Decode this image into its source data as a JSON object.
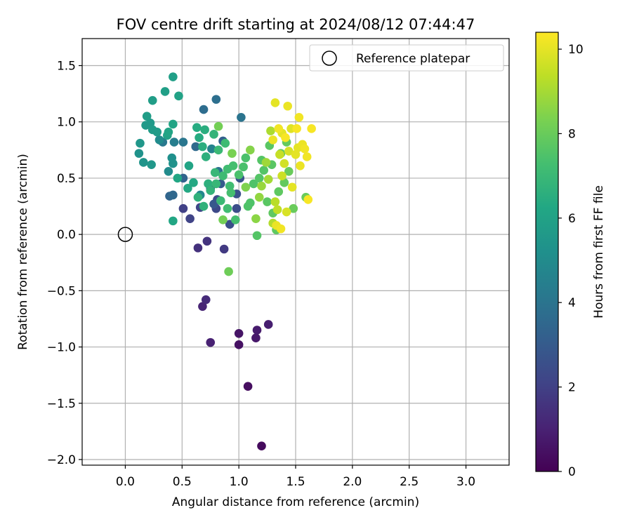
{
  "chart_data": {
    "type": "scatter",
    "title": "FOV centre drift starting at 2024/08/12 07:44:47",
    "xlabel": "Angular distance from reference (arcmin)",
    "ylabel": "Rotation from reference (arcmin)",
    "xlim": [
      -0.38,
      3.38
    ],
    "ylim": [
      -2.05,
      1.74
    ],
    "xticks": [
      0.0,
      0.5,
      1.0,
      1.5,
      2.0,
      2.5,
      3.0
    ],
    "xtick_labels": [
      "0.0",
      "0.5",
      "1.0",
      "1.5",
      "2.0",
      "2.5",
      "3.0"
    ],
    "yticks": [
      -2.0,
      -1.5,
      -1.0,
      -0.5,
      0.0,
      0.5,
      1.0,
      1.5
    ],
    "ytick_labels": [
      "−2.0",
      "−1.5",
      "−1.0",
      "−0.5",
      "0.0",
      "0.5",
      "1.0",
      "1.5"
    ],
    "grid": true,
    "legend": {
      "placement": "top-right",
      "entries": [
        "Reference platepar"
      ]
    },
    "reference_point": {
      "x": 0.0,
      "y": 0.0,
      "marker": "open-circle"
    },
    "colorbar": {
      "label": "Hours from first FF file",
      "min": 0,
      "max": 10.4,
      "ticks": [
        0,
        2,
        4,
        6,
        8,
        10
      ],
      "tick_labels": [
        "0",
        "2",
        "4",
        "6",
        "8",
        "10"
      ],
      "colormap": "viridis"
    },
    "series": [
      {
        "points": [
          [
            1.2,
            -1.88,
            0.3
          ],
          [
            1.08,
            -1.35,
            0.4
          ],
          [
            1.0,
            -0.98,
            0.5
          ],
          [
            1.0,
            -0.88,
            0.6
          ],
          [
            1.15,
            -0.92,
            0.7
          ],
          [
            1.16,
            -0.85,
            0.8
          ],
          [
            1.26,
            -0.8,
            0.9
          ],
          [
            0.75,
            -0.96,
            1.0
          ],
          [
            0.68,
            -0.64,
            1.1
          ],
          [
            0.71,
            -0.58,
            1.3
          ],
          [
            0.64,
            -0.12,
            1.5
          ],
          [
            0.72,
            -0.06,
            1.6
          ],
          [
            0.87,
            -0.13,
            1.8
          ],
          [
            0.51,
            0.23,
            2.0
          ],
          [
            0.57,
            0.14,
            2.1
          ],
          [
            0.66,
            0.24,
            2.2
          ],
          [
            0.8,
            0.23,
            2.3
          ],
          [
            0.81,
            0.31,
            2.4
          ],
          [
            0.92,
            0.09,
            2.5
          ],
          [
            0.98,
            0.23,
            2.5
          ],
          [
            0.98,
            0.36,
            2.6
          ],
          [
            1.01,
            0.5,
            2.7
          ],
          [
            0.75,
            0.41,
            2.8
          ],
          [
            0.78,
            0.27,
            2.9
          ],
          [
            0.84,
            0.45,
            3.0
          ],
          [
            0.86,
            0.83,
            3.2
          ],
          [
            0.51,
            0.5,
            3.3
          ],
          [
            0.39,
            0.34,
            3.4
          ],
          [
            0.42,
            0.35,
            3.5
          ],
          [
            0.62,
            0.78,
            3.6
          ],
          [
            0.69,
            1.11,
            3.7
          ],
          [
            0.8,
            1.2,
            3.8
          ],
          [
            0.82,
            0.56,
            3.9
          ],
          [
            1.02,
            1.04,
            4.0
          ],
          [
            0.51,
            0.82,
            4.1
          ],
          [
            0.33,
            0.82,
            4.2
          ],
          [
            0.43,
            0.82,
            4.4
          ],
          [
            0.76,
            0.76,
            4.6
          ],
          [
            0.66,
            0.35,
            4.8
          ],
          [
            0.3,
            0.84,
            5.0
          ],
          [
            0.38,
            0.56,
            5.0
          ],
          [
            0.41,
            0.68,
            5.2
          ],
          [
            0.42,
            0.63,
            5.3
          ],
          [
            0.12,
            0.72,
            5.3
          ],
          [
            0.16,
            0.64,
            5.4
          ],
          [
            0.23,
            0.62,
            5.5
          ],
          [
            0.13,
            0.81,
            5.5
          ],
          [
            0.18,
            0.97,
            5.6
          ],
          [
            0.22,
            0.99,
            5.6
          ],
          [
            0.24,
            0.93,
            5.7
          ],
          [
            0.28,
            0.91,
            5.7
          ],
          [
            0.19,
            1.05,
            5.8
          ],
          [
            0.24,
            1.19,
            5.8
          ],
          [
            0.35,
            1.27,
            5.9
          ],
          [
            0.42,
            1.4,
            5.9
          ],
          [
            0.47,
            1.23,
            6.0
          ],
          [
            0.37,
            0.88,
            6.0
          ],
          [
            0.38,
            0.91,
            6.1
          ],
          [
            0.42,
            0.98,
            6.1
          ],
          [
            0.56,
            0.61,
            6.1
          ],
          [
            0.46,
            0.5,
            6.2
          ],
          [
            0.42,
            0.12,
            6.2
          ],
          [
            0.55,
            0.41,
            6.3
          ],
          [
            0.6,
            0.46,
            6.3
          ],
          [
            0.63,
            0.95,
            6.4
          ],
          [
            0.65,
            0.86,
            6.4
          ],
          [
            0.68,
            0.78,
            6.5
          ],
          [
            0.7,
            0.93,
            6.5
          ],
          [
            0.71,
            0.69,
            6.6
          ],
          [
            0.73,
            0.45,
            6.6
          ],
          [
            0.64,
            0.33,
            6.7
          ],
          [
            0.69,
            0.25,
            6.7
          ],
          [
            0.75,
            0.39,
            6.8
          ],
          [
            0.78,
            0.89,
            6.8
          ],
          [
            0.79,
            0.55,
            6.9
          ],
          [
            0.8,
            0.45,
            6.9
          ],
          [
            0.82,
            0.75,
            7.0
          ],
          [
            0.84,
            0.3,
            7.0
          ],
          [
            0.86,
            0.52,
            7.1
          ],
          [
            0.88,
            0.81,
            7.1
          ],
          [
            0.9,
            0.23,
            7.2
          ],
          [
            0.9,
            0.58,
            7.2
          ],
          [
            0.92,
            0.43,
            7.2
          ],
          [
            0.93,
            0.37,
            7.3
          ],
          [
            0.95,
            0.61,
            7.3
          ],
          [
            0.97,
            0.13,
            7.3
          ],
          [
            1.0,
            0.53,
            7.4
          ],
          [
            1.04,
            0.6,
            7.4
          ],
          [
            1.06,
            0.68,
            7.4
          ],
          [
            1.08,
            0.25,
            7.5
          ],
          [
            1.1,
            0.28,
            7.5
          ],
          [
            1.13,
            0.45,
            7.5
          ],
          [
            1.16,
            -0.01,
            7.6
          ],
          [
            1.18,
            0.5,
            7.6
          ],
          [
            1.2,
            0.66,
            7.6
          ],
          [
            1.22,
            0.57,
            7.6
          ],
          [
            1.25,
            0.29,
            7.7
          ],
          [
            1.27,
            0.79,
            7.7
          ],
          [
            1.29,
            0.62,
            7.7
          ],
          [
            1.3,
            0.19,
            7.8
          ],
          [
            1.33,
            0.04,
            7.8
          ],
          [
            1.35,
            0.38,
            7.8
          ],
          [
            1.37,
            0.72,
            7.9
          ],
          [
            1.4,
            0.46,
            7.9
          ],
          [
            1.42,
            0.82,
            7.9
          ],
          [
            1.44,
            0.56,
            8.0
          ],
          [
            1.48,
            0.23,
            8.0
          ],
          [
            1.59,
            0.33,
            8.0
          ],
          [
            0.91,
            -0.33,
            8.1
          ],
          [
            0.82,
            0.96,
            8.2
          ],
          [
            0.86,
            0.13,
            8.2
          ],
          [
            0.94,
            0.72,
            8.3
          ],
          [
            1.06,
            0.42,
            8.4
          ],
          [
            1.1,
            0.75,
            8.5
          ],
          [
            1.15,
            0.14,
            8.6
          ],
          [
            1.18,
            0.33,
            8.7
          ],
          [
            1.2,
            0.43,
            8.8
          ],
          [
            1.24,
            0.64,
            8.9
          ],
          [
            1.26,
            0.49,
            9.0
          ],
          [
            1.28,
            0.92,
            9.1
          ],
          [
            1.3,
            0.1,
            9.2
          ],
          [
            1.32,
            0.29,
            9.3
          ],
          [
            1.34,
            0.22,
            9.4
          ],
          [
            1.36,
            0.71,
            9.5
          ],
          [
            1.38,
            0.52,
            9.6
          ],
          [
            1.4,
            0.63,
            9.7
          ],
          [
            1.42,
            0.2,
            9.8
          ],
          [
            1.44,
            0.74,
            9.8
          ],
          [
            1.46,
            0.94,
            9.9
          ],
          [
            1.5,
            0.71,
            10.0
          ],
          [
            1.52,
            0.77,
            10.0
          ],
          [
            1.54,
            0.61,
            10.1
          ],
          [
            1.56,
            0.8,
            10.1
          ],
          [
            1.58,
            0.76,
            10.2
          ],
          [
            1.6,
            0.69,
            10.2
          ],
          [
            1.64,
            0.94,
            10.3
          ],
          [
            1.61,
            0.31,
            10.3
          ],
          [
            1.53,
            1.04,
            10.2
          ],
          [
            1.43,
            1.14,
            10.1
          ],
          [
            1.32,
            1.17,
            10.0
          ],
          [
            1.3,
            0.84,
            10.1
          ],
          [
            1.35,
            0.94,
            10.2
          ],
          [
            1.38,
            0.9,
            10.0
          ],
          [
            1.41,
            0.86,
            10.3
          ],
          [
            1.33,
            0.08,
            10.1
          ],
          [
            1.37,
            0.05,
            10.2
          ],
          [
            1.51,
            0.94,
            10.3
          ],
          [
            1.47,
            0.42,
            10.0
          ]
        ]
      }
    ]
  }
}
